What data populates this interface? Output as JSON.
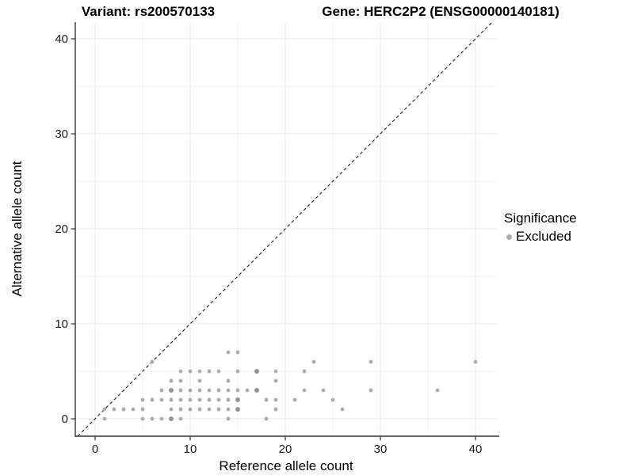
{
  "titles": {
    "left": "Variant: rs200570133",
    "right": "Gene: HERC2P2 (ENSG00000140181)"
  },
  "axes": {
    "x_label": "Reference allele count",
    "y_label": "Alternative allele count"
  },
  "legend": {
    "title": "Significance",
    "entries": [
      {
        "label": "Excluded",
        "color": "#ababab"
      }
    ]
  },
  "chart_data": {
    "type": "scatter",
    "title": "Variant: rs200570133 — Gene: HERC2P2 (ENSG00000140181)",
    "xlabel": "Reference allele count",
    "ylabel": "Alternative allele count",
    "xlim": [
      -2.1,
      42.3
    ],
    "ylim": [
      -1.9,
      41.8
    ],
    "x_ticks": [
      0,
      10,
      20,
      30,
      40
    ],
    "y_ticks": [
      0,
      10,
      20,
      30,
      40
    ],
    "x_minor_gridlines": [
      5,
      15,
      25,
      35
    ],
    "y_minor_gridlines": [
      5,
      15,
      25,
      35
    ],
    "grid": true,
    "legend_position": "right",
    "identity_line": {
      "style": "dashed",
      "slope": 1,
      "intercept": 0,
      "color": "#1a1a1a"
    },
    "series": [
      {
        "name": "Excluded",
        "color": "#ababab",
        "points": [
          [
            1,
            0
          ],
          [
            5,
            0
          ],
          [
            6,
            0
          ],
          [
            7,
            0
          ],
          [
            8,
            0
          ],
          [
            9,
            0
          ],
          [
            14,
            0
          ],
          [
            18,
            0
          ],
          [
            1,
            1
          ],
          [
            2,
            1
          ],
          [
            3,
            1
          ],
          [
            4,
            1
          ],
          [
            5,
            1
          ],
          [
            8,
            1
          ],
          [
            9,
            1
          ],
          [
            10,
            1
          ],
          [
            11,
            1
          ],
          [
            12,
            1
          ],
          [
            13,
            1
          ],
          [
            14,
            1
          ],
          [
            15,
            1
          ],
          [
            19,
            1
          ],
          [
            26,
            1
          ],
          [
            5,
            2
          ],
          [
            6,
            2
          ],
          [
            7,
            2
          ],
          [
            8,
            2
          ],
          [
            9,
            2
          ],
          [
            10,
            2
          ],
          [
            11,
            2
          ],
          [
            12,
            2
          ],
          [
            13,
            2
          ],
          [
            14,
            2
          ],
          [
            15,
            2
          ],
          [
            18,
            2
          ],
          [
            19,
            2
          ],
          [
            21,
            2
          ],
          [
            25,
            2
          ],
          [
            7,
            3
          ],
          [
            8,
            3
          ],
          [
            9,
            3
          ],
          [
            10,
            3
          ],
          [
            11,
            3
          ],
          [
            12,
            3
          ],
          [
            13,
            3
          ],
          [
            14,
            3
          ],
          [
            15,
            3
          ],
          [
            16,
            3
          ],
          [
            17,
            3
          ],
          [
            22,
            3
          ],
          [
            24,
            3
          ],
          [
            29,
            3
          ],
          [
            36,
            3
          ],
          [
            8,
            4
          ],
          [
            9,
            4
          ],
          [
            11,
            4
          ],
          [
            14,
            4
          ],
          [
            19,
            4
          ],
          [
            9,
            5
          ],
          [
            10,
            5
          ],
          [
            11,
            5
          ],
          [
            12,
            5
          ],
          [
            13,
            5
          ],
          [
            15,
            5
          ],
          [
            17,
            5
          ],
          [
            19,
            5
          ],
          [
            22,
            5
          ],
          [
            6,
            6
          ],
          [
            23,
            6
          ],
          [
            29,
            6
          ],
          [
            40,
            6
          ],
          [
            14,
            7
          ],
          [
            15,
            7
          ]
        ]
      }
    ],
    "overplotted_points": [
      [
        8,
        0
      ],
      [
        8,
        3
      ],
      [
        15,
        1
      ],
      [
        15,
        2
      ],
      [
        17,
        3
      ],
      [
        17,
        5
      ]
    ],
    "colors": {
      "point": "#ababab",
      "point_dark": "#949494",
      "grid_major": "#e8e8e8",
      "grid_minor": "#f2f2f2",
      "axis": "#333333",
      "tick_label": "#1a1a1a"
    }
  }
}
